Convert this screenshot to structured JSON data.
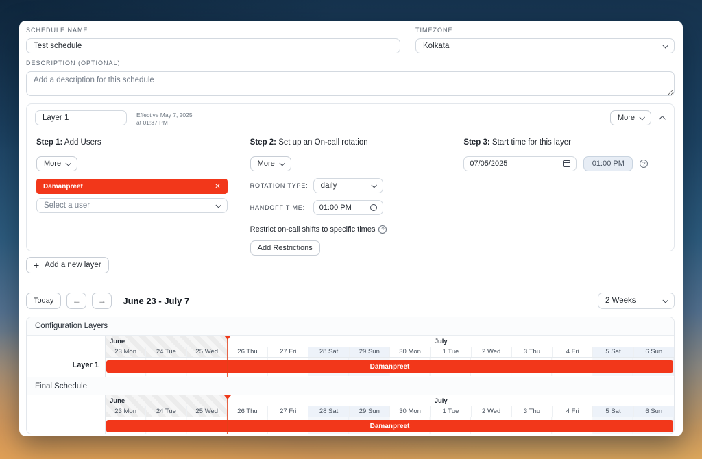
{
  "labels": {
    "more": "More"
  },
  "icons": {
    "close": "✕",
    "plus": "+",
    "arrow_left": "←",
    "arrow_right": "→",
    "question": "?"
  },
  "form": {
    "schedule_name_label": "SCHEDULE NAME",
    "schedule_name_value": "Test schedule",
    "timezone_label": "TIMEZONE",
    "timezone_value": "Kolkata",
    "description_label": "DESCRIPTION (OPTIONAL)",
    "description_placeholder": "Add a description for this schedule"
  },
  "layer_editor": {
    "name_value": "Layer 1",
    "effective_line1": "Effective May 7, 2025",
    "effective_line2": "at 01:37 PM",
    "step1": {
      "title_bold": "Step 1:",
      "title_rest": " Add Users",
      "user_chip": "Damanpreet",
      "select_placeholder": "Select a user"
    },
    "step2": {
      "title_bold": "Step 2:",
      "title_rest": " Set up an On-call rotation",
      "rotation_type_label": "ROTATION TYPE:",
      "rotation_type_value": "daily",
      "handoff_label": "HANDOFF TIME:",
      "handoff_value": "01:00 PM",
      "restrict_text": "Restrict on-call shifts to specific times",
      "add_restrictions_label": "Add Restrictions"
    },
    "step3": {
      "title_bold": "Step 3:",
      "title_rest": " Start time for this layer",
      "date_value": "07/05/2025",
      "time_value": "01:00 PM"
    }
  },
  "add_layer_label": "Add a new layer",
  "toolbar": {
    "today_label": "Today",
    "range_label": "June 23 - July 7",
    "zoom_value": "2 Weeks"
  },
  "timeline": {
    "months": [
      {
        "label": "June"
      },
      {
        "label": "July"
      }
    ],
    "days": [
      "23 Mon",
      "24 Tue",
      "25 Wed",
      "26 Thu",
      "27 Fri",
      "28 Sat",
      "29 Sun",
      "30 Mon",
      "1 Tue",
      "2 Wed",
      "3 Thu",
      "4 Fri",
      "5 Sat",
      "6 Sun"
    ],
    "weekend_indices": [
      5,
      6,
      12,
      13
    ],
    "now_fraction": 0.2143,
    "sections": [
      {
        "title": "Configuration Layers",
        "row_label": "Layer 1",
        "bar_label": "Damanpreet"
      },
      {
        "title": "Final Schedule",
        "row_label": "",
        "bar_label": "Damanpreet"
      }
    ]
  },
  "colors": {
    "shift_red": "#f2371a"
  }
}
